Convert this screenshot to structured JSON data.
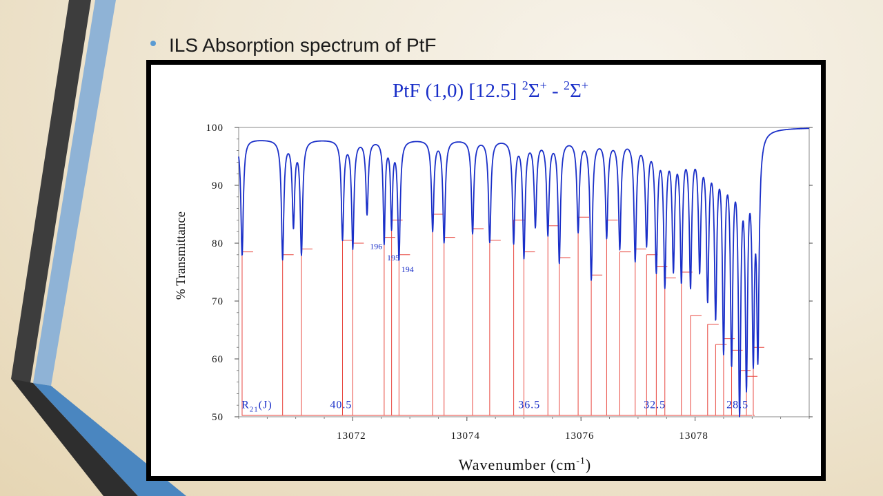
{
  "slide": {
    "bullet_text": "ILS Absorption spectrum of PtF",
    "accent_color": "#5a9bd3"
  },
  "chart_data": {
    "type": "line",
    "title": "PtF (1,0) [12.5] 2Σ+ - 2Σ+",
    "title_parts": {
      "molecule": "PtF (1,0) [12.5] ",
      "upper_sup": "2",
      "upper": "Σ",
      "upper_charge": "+",
      "dash": " - ",
      "lower_sup": "2",
      "lower": "Σ",
      "lower_charge": "+"
    },
    "xlabel": "Wavenumber (cm-1)",
    "xlabel_parts": {
      "base": "Wavenumber (cm",
      "exp": "-1",
      "close": ")"
    },
    "ylabel": "% Transmittance",
    "xlim": [
      13070.0,
      13080.0
    ],
    "ylim": [
      50,
      100
    ],
    "xticks": [
      13072,
      13074,
      13076,
      13078
    ],
    "yticks": [
      50,
      60,
      70,
      80,
      90,
      100
    ],
    "grid": false,
    "series_color": "#1a2fc8",
    "assign_color": "#e8463e",
    "baseline": 100,
    "edge_x": 13079.0,
    "lines": [
      {
        "x": 13070.06,
        "y": 79.5,
        "w": 0.05
      },
      {
        "x": 13070.77,
        "y": 79.0,
        "w": 0.05
      },
      {
        "x": 13070.96,
        "y": 85.0,
        "w": 0.05
      },
      {
        "x": 13071.1,
        "y": 80.0,
        "w": 0.05
      },
      {
        "x": 13071.82,
        "y": 82.5,
        "w": 0.05
      },
      {
        "x": 13072.0,
        "y": 81.0,
        "w": 0.05
      },
      {
        "x": 13072.25,
        "y": 87.0,
        "w": 0.05
      },
      {
        "x": 13072.55,
        "y": 82.0,
        "w": 0.04
      },
      {
        "x": 13072.68,
        "y": 85.0,
        "w": 0.04
      },
      {
        "x": 13072.81,
        "y": 79.0,
        "w": 0.05
      },
      {
        "x": 13073.4,
        "y": 84.0,
        "w": 0.05
      },
      {
        "x": 13073.6,
        "y": 82.0,
        "w": 0.05
      },
      {
        "x": 13074.1,
        "y": 83.5,
        "w": 0.05
      },
      {
        "x": 13074.4,
        "y": 82.0,
        "w": 0.05
      },
      {
        "x": 13074.82,
        "y": 82.0,
        "w": 0.05
      },
      {
        "x": 13075.0,
        "y": 79.5,
        "w": 0.05
      },
      {
        "x": 13075.2,
        "y": 85.0,
        "w": 0.05
      },
      {
        "x": 13075.42,
        "y": 83.5,
        "w": 0.05
      },
      {
        "x": 13075.62,
        "y": 78.5,
        "w": 0.05
      },
      {
        "x": 13075.95,
        "y": 84.0,
        "w": 0.05
      },
      {
        "x": 13076.18,
        "y": 75.5,
        "w": 0.05
      },
      {
        "x": 13076.45,
        "y": 83.0,
        "w": 0.05
      },
      {
        "x": 13076.68,
        "y": 81.0,
        "w": 0.05
      },
      {
        "x": 13076.95,
        "y": 79.0,
        "w": 0.05
      },
      {
        "x": 13077.15,
        "y": 82.0,
        "w": 0.05
      },
      {
        "x": 13077.32,
        "y": 77.5,
        "w": 0.05
      },
      {
        "x": 13077.47,
        "y": 75.0,
        "w": 0.05
      },
      {
        "x": 13077.62,
        "y": 78.0,
        "w": 0.05
      },
      {
        "x": 13077.76,
        "y": 76.0,
        "w": 0.05
      },
      {
        "x": 13077.92,
        "y": 75.0,
        "w": 0.05
      },
      {
        "x": 13078.08,
        "y": 78.0,
        "w": 0.05
      },
      {
        "x": 13078.22,
        "y": 73.0,
        "w": 0.05
      },
      {
        "x": 13078.36,
        "y": 70.0,
        "w": 0.05
      },
      {
        "x": 13078.5,
        "y": 64.0,
        "w": 0.05
      },
      {
        "x": 13078.64,
        "y": 62.0,
        "w": 0.05
      },
      {
        "x": 13078.78,
        "y": 53.0,
        "w": 0.05
      },
      {
        "x": 13078.9,
        "y": 58.0,
        "w": 0.05
      },
      {
        "x": 13079.02,
        "y": 62.5,
        "w": 0.05
      },
      {
        "x": 13079.1,
        "y": 62.0,
        "w": 0.05
      }
    ],
    "assignments": [
      {
        "x": 13070.06,
        "y_top": 78.5
      },
      {
        "x": 13070.77,
        "y_top": 78.0
      },
      {
        "x": 13071.1,
        "y_top": 79.0
      },
      {
        "x": 13071.82,
        "y_top": 80.5
      },
      {
        "x": 13072.0,
        "y_top": 80.0
      },
      {
        "x": 13072.55,
        "y_top": 81.0
      },
      {
        "x": 13072.68,
        "y_top": 84.0
      },
      {
        "x": 13072.81,
        "y_top": 78.0
      },
      {
        "x": 13073.4,
        "y_top": 85.0
      },
      {
        "x": 13073.6,
        "y_top": 81.0
      },
      {
        "x": 13074.1,
        "y_top": 82.5
      },
      {
        "x": 13074.4,
        "y_top": 80.5
      },
      {
        "x": 13074.82,
        "y_top": 84.0
      },
      {
        "x": 13075.0,
        "y_top": 78.5
      },
      {
        "x": 13075.42,
        "y_top": 83.0
      },
      {
        "x": 13075.62,
        "y_top": 77.5
      },
      {
        "x": 13075.95,
        "y_top": 84.5
      },
      {
        "x": 13076.18,
        "y_top": 74.5
      },
      {
        "x": 13076.45,
        "y_top": 84.0
      },
      {
        "x": 13076.68,
        "y_top": 78.5
      },
      {
        "x": 13076.95,
        "y_top": 79.0
      },
      {
        "x": 13077.15,
        "y_top": 78.0
      },
      {
        "x": 13077.32,
        "y_top": 76.0
      },
      {
        "x": 13077.47,
        "y_top": 74.0
      },
      {
        "x": 13077.76,
        "y_top": 75.0
      },
      {
        "x": 13077.92,
        "y_top": 67.5
      },
      {
        "x": 13078.22,
        "y_top": 66.0
      },
      {
        "x": 13078.36,
        "y_top": 62.5
      },
      {
        "x": 13078.5,
        "y_top": 63.5
      },
      {
        "x": 13078.64,
        "y_top": 61.5
      },
      {
        "x": 13078.78,
        "y_top": 58.0
      },
      {
        "x": 13078.9,
        "y_top": 57.0
      },
      {
        "x": 13079.02,
        "y_top": 62.0
      }
    ],
    "annotations": [
      {
        "text": "R21(J)",
        "base": "R",
        "sub": "21",
        "tail": "(J)",
        "x": 13070.05,
        "y": 51.5
      },
      {
        "text": "40.5",
        "x": 13071.6,
        "y": 51.5
      },
      {
        "text": "36.5",
        "x": 13074.9,
        "y": 51.5
      },
      {
        "text": "32.5",
        "x": 13077.1,
        "y": 51.5
      },
      {
        "text": "28.5",
        "x": 13078.55,
        "y": 51.5
      },
      {
        "text": "196",
        "x": 13072.3,
        "y": 79.0
      },
      {
        "text": "195",
        "x": 13072.6,
        "y": 77.0
      },
      {
        "text": "194",
        "x": 13072.85,
        "y": 75.0
      }
    ]
  }
}
